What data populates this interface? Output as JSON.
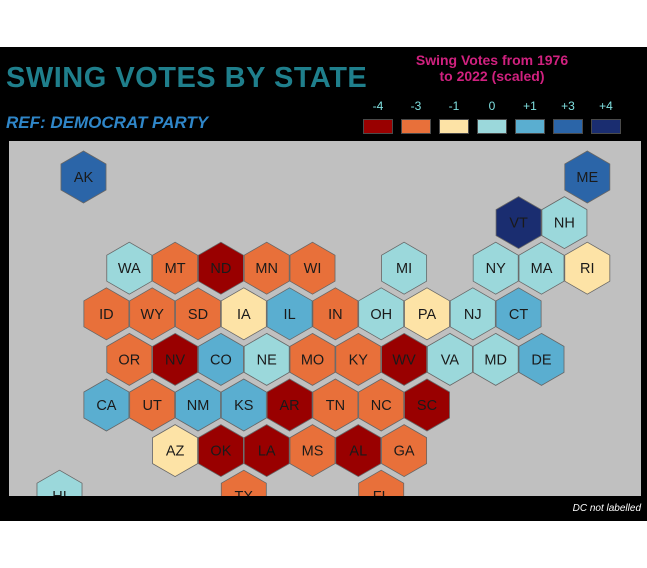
{
  "title": "SWING VOTES BY STATE",
  "subtitle": "REF: DEMOCRAT PARTY",
  "legend": {
    "title_line1": "Swing Votes from 1976",
    "title_line2": "to 2022 (scaled)",
    "items": [
      {
        "label": "-4",
        "value": -4,
        "color": "#990000"
      },
      {
        "label": "-3",
        "value": -3,
        "color": "#e8703a"
      },
      {
        "label": "-1",
        "value": -1,
        "color": "#fde3a6"
      },
      {
        "label": "0",
        "value": 0,
        "color": "#9bd8db"
      },
      {
        "label": "+1",
        "value": 1,
        "color": "#5aaed0"
      },
      {
        "label": "+3",
        "value": 3,
        "color": "#2b65a8"
      },
      {
        "label": "+4",
        "value": 4,
        "color": "#1a2d70"
      }
    ]
  },
  "note": "DC not labelled",
  "states": [
    {
      "abbr": "AK",
      "col": 0,
      "row": 0,
      "value": 3
    },
    {
      "abbr": "ME",
      "col": 11,
      "row": 0,
      "value": 3
    },
    {
      "abbr": "VT",
      "col": 10,
      "row": 1,
      "value": 4
    },
    {
      "abbr": "NH",
      "col": 11,
      "row": 1,
      "value": 0
    },
    {
      "abbr": "WA",
      "col": 1,
      "row": 2,
      "value": 0
    },
    {
      "abbr": "MT",
      "col": 2,
      "row": 2,
      "value": -3
    },
    {
      "abbr": "ND",
      "col": 3,
      "row": 2,
      "value": -4
    },
    {
      "abbr": "MN",
      "col": 4,
      "row": 2,
      "value": -3
    },
    {
      "abbr": "WI",
      "col": 5,
      "row": 2,
      "value": -3
    },
    {
      "abbr": "MI",
      "col": 7,
      "row": 2,
      "value": 0
    },
    {
      "abbr": "NY",
      "col": 9,
      "row": 2,
      "value": 0
    },
    {
      "abbr": "MA",
      "col": 10,
      "row": 2,
      "value": 0
    },
    {
      "abbr": "RI",
      "col": 11,
      "row": 2,
      "value": -1
    },
    {
      "abbr": "ID",
      "col": 1,
      "row": 3,
      "value": -3
    },
    {
      "abbr": "WY",
      "col": 2,
      "row": 3,
      "value": -3
    },
    {
      "abbr": "SD",
      "col": 3,
      "row": 3,
      "value": -3
    },
    {
      "abbr": "IA",
      "col": 4,
      "row": 3,
      "value": -1
    },
    {
      "abbr": "IL",
      "col": 5,
      "row": 3,
      "value": 1
    },
    {
      "abbr": "IN",
      "col": 6,
      "row": 3,
      "value": -3
    },
    {
      "abbr": "OH",
      "col": 7,
      "row": 3,
      "value": 0
    },
    {
      "abbr": "PA",
      "col": 8,
      "row": 3,
      "value": -1
    },
    {
      "abbr": "NJ",
      "col": 9,
      "row": 3,
      "value": 0
    },
    {
      "abbr": "CT",
      "col": 10,
      "row": 3,
      "value": 1
    },
    {
      "abbr": "OR",
      "col": 1,
      "row": 4,
      "value": -3
    },
    {
      "abbr": "NV",
      "col": 2,
      "row": 4,
      "value": -4
    },
    {
      "abbr": "CO",
      "col": 3,
      "row": 4,
      "value": 1
    },
    {
      "abbr": "NE",
      "col": 4,
      "row": 4,
      "value": 0
    },
    {
      "abbr": "MO",
      "col": 5,
      "row": 4,
      "value": -3
    },
    {
      "abbr": "KY",
      "col": 6,
      "row": 4,
      "value": -3
    },
    {
      "abbr": "WV",
      "col": 7,
      "row": 4,
      "value": -4
    },
    {
      "abbr": "VA",
      "col": 8,
      "row": 4,
      "value": 0
    },
    {
      "abbr": "MD",
      "col": 9,
      "row": 4,
      "value": 0
    },
    {
      "abbr": "DE",
      "col": 10,
      "row": 4,
      "value": 1
    },
    {
      "abbr": "CA",
      "col": 1,
      "row": 5,
      "value": 1
    },
    {
      "abbr": "UT",
      "col": 2,
      "row": 5,
      "value": -3
    },
    {
      "abbr": "NM",
      "col": 3,
      "row": 5,
      "value": 1
    },
    {
      "abbr": "KS",
      "col": 4,
      "row": 5,
      "value": 1
    },
    {
      "abbr": "AR",
      "col": 5,
      "row": 5,
      "value": -4
    },
    {
      "abbr": "TN",
      "col": 6,
      "row": 5,
      "value": -3
    },
    {
      "abbr": "NC",
      "col": 7,
      "row": 5,
      "value": -3
    },
    {
      "abbr": "SC",
      "col": 8,
      "row": 5,
      "value": -4
    },
    {
      "abbr": "AZ",
      "col": 2,
      "row": 6,
      "value": -1
    },
    {
      "abbr": "OK",
      "col": 3,
      "row": 6,
      "value": -4
    },
    {
      "abbr": "LA",
      "col": 4,
      "row": 6,
      "value": -4
    },
    {
      "abbr": "MS",
      "col": 5,
      "row": 6,
      "value": -3
    },
    {
      "abbr": "AL",
      "col": 6,
      "row": 6,
      "value": -4
    },
    {
      "abbr": "GA",
      "col": 7,
      "row": 6,
      "value": -3
    },
    {
      "abbr": "HI",
      "col": 0,
      "row": 7,
      "value": 0
    },
    {
      "abbr": "TX",
      "col": 4,
      "row": 7,
      "value": -3
    },
    {
      "abbr": "FL",
      "col": 7,
      "row": 7,
      "value": -3
    }
  ]
}
